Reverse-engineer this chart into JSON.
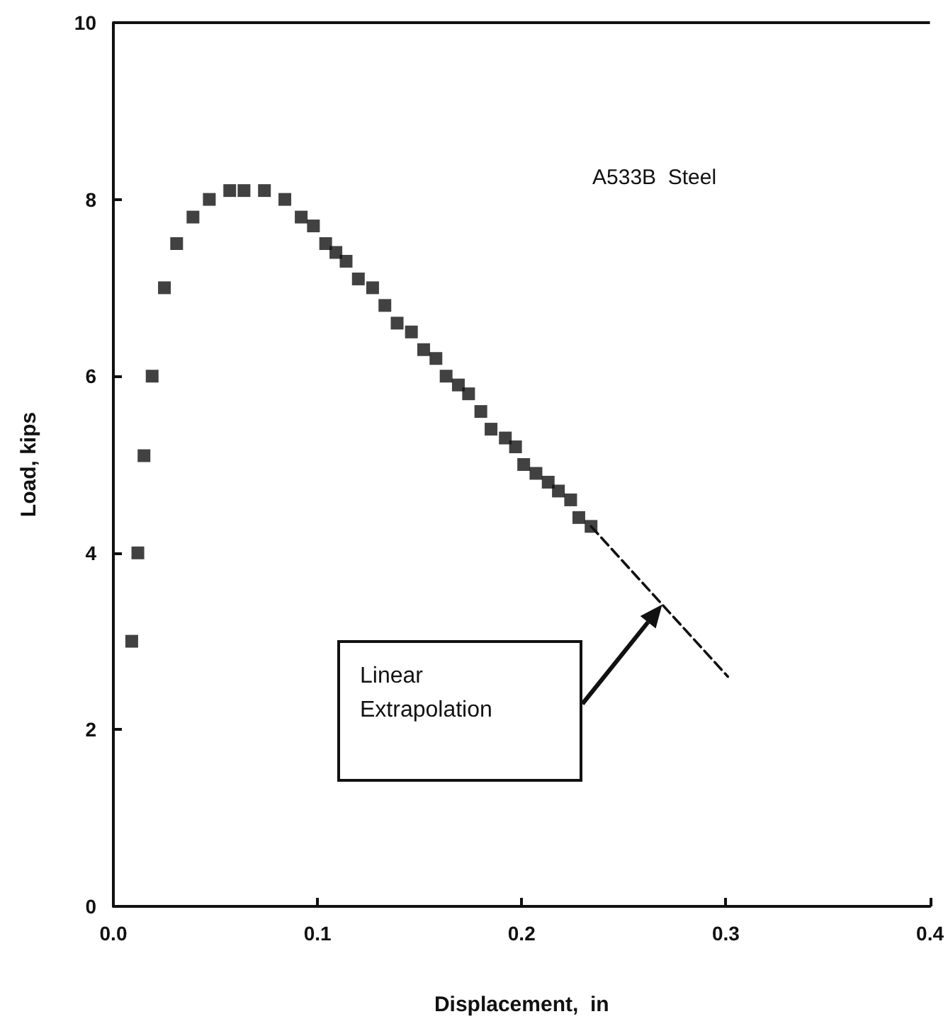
{
  "chart_data": {
    "type": "scatter",
    "xlabel": "Displacement,  in",
    "ylabel": "Load, kips",
    "xlim": [
      0,
      0.4
    ],
    "ylim": [
      0,
      10
    ],
    "xticks": [
      {
        "value": 0,
        "label": "0.0"
      },
      {
        "value": 0.1,
        "label": "0.1"
      },
      {
        "value": 0.2,
        "label": "0.2"
      },
      {
        "value": 0.3,
        "label": "0.3"
      },
      {
        "value": 0.4,
        "label": "0.4"
      }
    ],
    "yticks": [
      0,
      2,
      4,
      6,
      8,
      10
    ],
    "grid": false,
    "annotations": [
      "A533B  Steel",
      "Linear\nExtrapolation"
    ],
    "series": [
      {
        "marker": "square",
        "color": "#111111",
        "x": [
          0.009,
          0.012,
          0.015,
          0.019,
          0.025,
          0.031,
          0.039,
          0.047,
          0.057,
          0.064,
          0.074,
          0.084,
          0.092,
          0.098,
          0.104,
          0.109,
          0.114,
          0.12,
          0.127,
          0.133,
          0.139,
          0.146,
          0.152,
          0.158,
          0.163,
          0.169,
          0.174,
          0.18,
          0.185,
          0.192,
          0.197,
          0.201,
          0.207,
          0.213,
          0.218,
          0.224,
          0.228,
          0.234
        ],
        "values": [
          3.0,
          4.0,
          5.1,
          6.0,
          7.0,
          7.5,
          7.8,
          8.0,
          8.1,
          8.1,
          8.1,
          8.0,
          7.8,
          7.7,
          7.5,
          7.4,
          7.3,
          7.1,
          7.0,
          6.8,
          6.6,
          6.5,
          6.3,
          6.2,
          6.0,
          5.9,
          5.8,
          5.6,
          5.4,
          5.3,
          5.2,
          5.0,
          4.9,
          4.8,
          4.7,
          4.6,
          4.4,
          4.3
        ]
      },
      {
        "type": "line",
        "marker": "none",
        "line_style": "dashed",
        "color": "#111111",
        "x": [
          0.234,
          0.301
        ],
        "values": [
          4.3,
          2.6
        ]
      }
    ]
  }
}
